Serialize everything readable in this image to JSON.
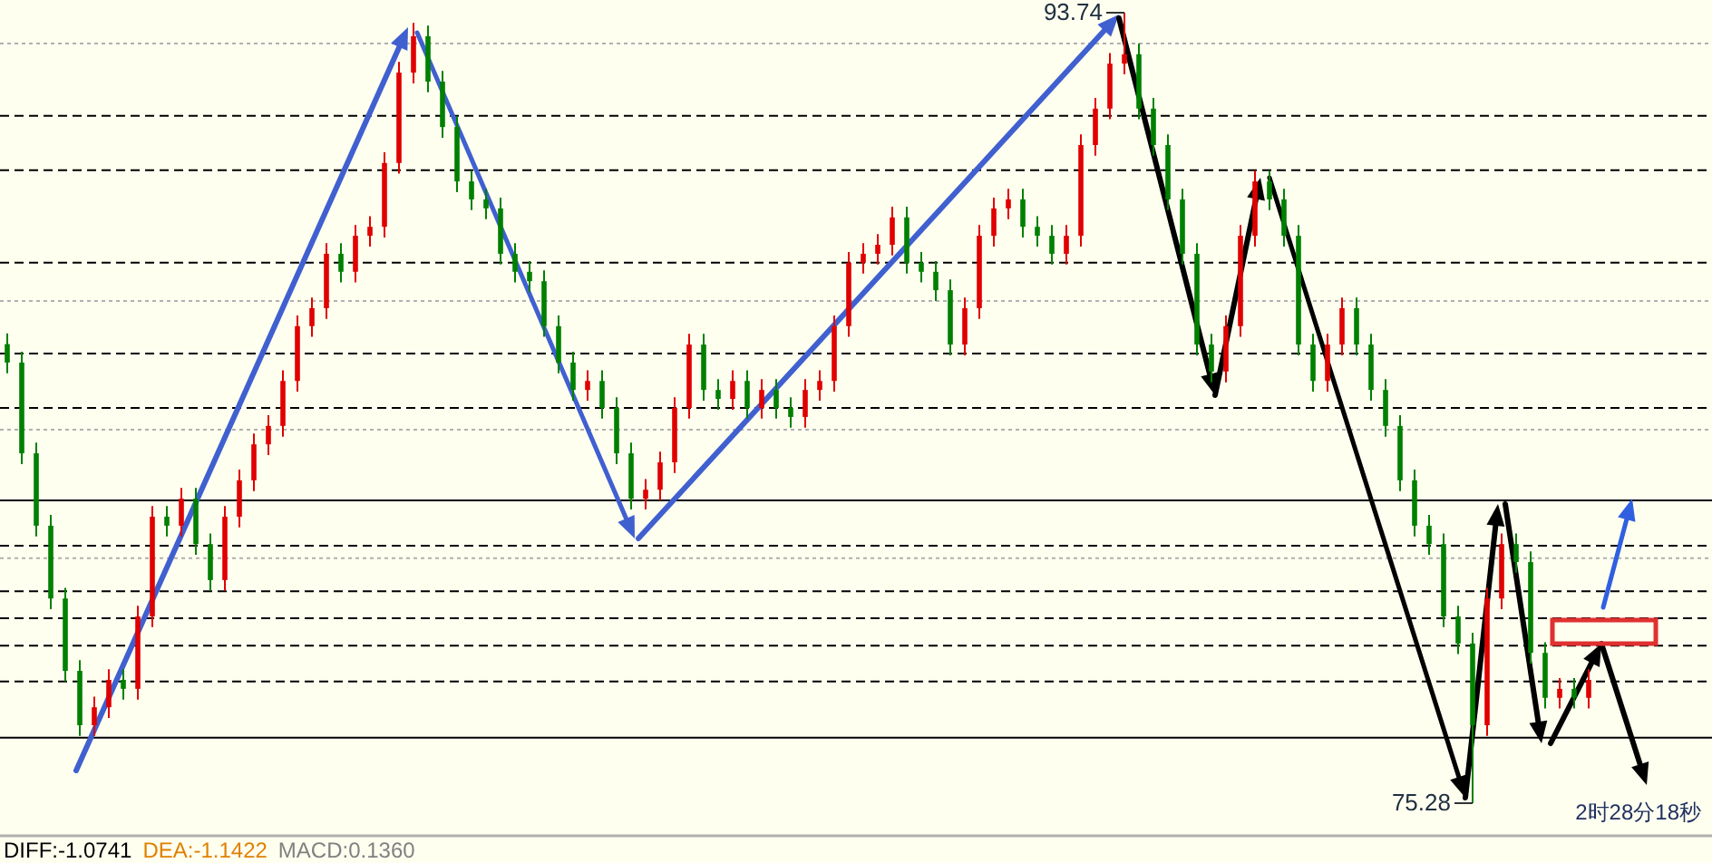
{
  "chart_data": {
    "type": "candlestick",
    "categories": [
      null,
      null,
      null,
      null,
      null,
      null,
      null,
      null,
      null,
      null,
      null,
      null,
      null,
      null,
      null,
      null,
      null,
      null,
      null,
      null,
      null,
      null,
      null,
      null,
      null,
      null,
      null,
      null,
      null,
      null,
      null,
      null,
      null,
      null,
      null,
      null,
      null,
      null,
      null,
      null,
      null,
      null,
      null,
      null,
      null,
      null,
      null,
      null,
      null,
      null,
      null,
      null,
      null,
      null,
      null,
      null,
      null,
      null,
      null,
      null,
      null,
      null,
      null,
      null,
      null,
      null,
      null,
      null,
      null,
      null,
      null,
      null,
      null,
      null,
      null,
      null,
      null,
      null,
      null,
      null,
      null,
      null,
      null,
      null,
      null,
      null,
      null,
      null,
      null,
      null,
      null,
      null,
      null,
      null,
      null,
      null,
      null,
      null,
      null,
      null,
      null,
      null,
      null,
      null,
      null,
      null,
      null,
      null,
      null,
      null,
      null,
      null,
      null,
      null,
      null,
      null,
      null,
      null
    ],
    "ohlc": [
      [
        86.0,
        86.25,
        85.32,
        85.57
      ],
      [
        85.57,
        85.82,
        83.2,
        83.45
      ],
      [
        83.45,
        83.7,
        81.51,
        81.76
      ],
      [
        81.76,
        82.01,
        79.81,
        80.06
      ],
      [
        80.06,
        80.31,
        78.12,
        78.37
      ],
      [
        78.37,
        78.62,
        76.85,
        77.1
      ],
      [
        77.1,
        77.77,
        76.85,
        77.52
      ],
      [
        77.52,
        78.41,
        77.27,
        78.16
      ],
      [
        78.16,
        78.41,
        77.7,
        77.95
      ],
      [
        77.95,
        79.89,
        77.7,
        79.64
      ],
      [
        79.64,
        82.22,
        79.39,
        81.97
      ],
      [
        81.97,
        82.22,
        81.51,
        81.76
      ],
      [
        81.76,
        82.64,
        81.51,
        82.39
      ],
      [
        82.39,
        82.64,
        81.08,
        81.33
      ],
      [
        81.33,
        81.58,
        80.24,
        80.49
      ],
      [
        80.49,
        82.22,
        80.24,
        81.97
      ],
      [
        81.97,
        83.07,
        81.72,
        82.82
      ],
      [
        82.82,
        83.91,
        82.57,
        83.66
      ],
      [
        83.66,
        84.34,
        83.41,
        84.09
      ],
      [
        84.09,
        85.39,
        83.84,
        85.14
      ],
      [
        85.14,
        86.67,
        84.89,
        86.42
      ],
      [
        86.42,
        87.09,
        86.17,
        86.84
      ],
      [
        86.84,
        88.36,
        86.59,
        88.11
      ],
      [
        88.11,
        88.36,
        87.44,
        87.69
      ],
      [
        87.69,
        88.78,
        87.44,
        88.53
      ],
      [
        88.53,
        88.99,
        88.28,
        88.74
      ],
      [
        88.74,
        90.48,
        88.49,
        90.23
      ],
      [
        90.23,
        92.59,
        89.98,
        92.34
      ],
      [
        92.34,
        93.5,
        92.09,
        93.19
      ],
      [
        93.19,
        93.44,
        91.88,
        92.13
      ],
      [
        92.13,
        92.38,
        90.82,
        91.07
      ],
      [
        91.07,
        91.32,
        89.55,
        89.8
      ],
      [
        89.8,
        90.05,
        89.13,
        89.38
      ],
      [
        89.38,
        89.63,
        88.92,
        89.17
      ],
      [
        89.17,
        89.42,
        87.86,
        88.11
      ],
      [
        88.11,
        88.36,
        87.44,
        87.69
      ],
      [
        87.69,
        87.94,
        87.22,
        87.47
      ],
      [
        87.47,
        87.72,
        86.17,
        86.42
      ],
      [
        86.42,
        86.67,
        85.32,
        85.57
      ],
      [
        85.57,
        85.82,
        84.68,
        84.93
      ],
      [
        84.93,
        85.39,
        84.68,
        85.14
      ],
      [
        85.14,
        85.39,
        84.26,
        84.51
      ],
      [
        84.51,
        84.76,
        83.2,
        83.45
      ],
      [
        83.45,
        83.7,
        82.14,
        82.39
      ],
      [
        82.39,
        82.85,
        82.14,
        82.6
      ],
      [
        82.6,
        83.49,
        82.35,
        83.24
      ],
      [
        83.24,
        84.76,
        82.99,
        84.51
      ],
      [
        84.51,
        86.24,
        84.26,
        85.99
      ],
      [
        85.99,
        86.24,
        84.68,
        84.93
      ],
      [
        84.93,
        85.18,
        84.47,
        84.72
      ],
      [
        84.72,
        85.39,
        84.47,
        85.14
      ],
      [
        85.14,
        85.39,
        84.26,
        84.51
      ],
      [
        84.51,
        85.18,
        84.26,
        84.93
      ],
      [
        84.93,
        85.18,
        84.26,
        84.51
      ],
      [
        84.51,
        84.76,
        84.05,
        84.3
      ],
      [
        84.3,
        85.18,
        84.05,
        84.93
      ],
      [
        84.93,
        85.39,
        84.68,
        85.14
      ],
      [
        85.14,
        86.67,
        84.89,
        86.42
      ],
      [
        86.42,
        88.15,
        86.17,
        87.9
      ],
      [
        87.9,
        88.36,
        87.65,
        88.11
      ],
      [
        88.11,
        88.57,
        87.86,
        88.32
      ],
      [
        88.32,
        89.21,
        88.07,
        88.96
      ],
      [
        88.96,
        89.21,
        87.65,
        87.9
      ],
      [
        87.9,
        88.15,
        87.44,
        87.69
      ],
      [
        87.69,
        87.94,
        87.01,
        87.26
      ],
      [
        87.26,
        87.51,
        85.74,
        85.99
      ],
      [
        85.99,
        87.09,
        85.74,
        86.84
      ],
      [
        86.84,
        88.78,
        86.59,
        88.53
      ],
      [
        88.53,
        89.42,
        88.28,
        89.17
      ],
      [
        89.17,
        89.63,
        88.92,
        89.38
      ],
      [
        89.38,
        89.63,
        88.49,
        88.74
      ],
      [
        88.74,
        88.99,
        88.28,
        88.53
      ],
      [
        88.53,
        88.78,
        87.86,
        88.11
      ],
      [
        88.11,
        88.78,
        87.86,
        88.53
      ],
      [
        88.53,
        90.9,
        88.28,
        90.65
      ],
      [
        90.65,
        91.75,
        90.4,
        91.5
      ],
      [
        91.5,
        92.8,
        91.25,
        92.55
      ],
      [
        92.55,
        93.74,
        92.3,
        92.77
      ],
      [
        92.77,
        93.02,
        91.25,
        91.5
      ],
      [
        91.5,
        91.75,
        90.4,
        90.65
      ],
      [
        90.65,
        90.9,
        89.13,
        89.38
      ],
      [
        89.38,
        89.63,
        87.86,
        88.11
      ],
      [
        88.11,
        88.36,
        85.74,
        85.99
      ],
      [
        85.99,
        86.24,
        85.11,
        85.36
      ],
      [
        85.36,
        86.67,
        85.11,
        86.42
      ],
      [
        86.42,
        88.78,
        86.17,
        88.53
      ],
      [
        88.53,
        90.05,
        88.28,
        89.8
      ],
      [
        89.8,
        90.05,
        89.13,
        89.38
      ],
      [
        89.38,
        89.63,
        88.28,
        88.53
      ],
      [
        88.53,
        88.78,
        85.74,
        85.99
      ],
      [
        85.99,
        86.24,
        84.89,
        85.14
      ],
      [
        85.14,
        86.24,
        84.89,
        85.99
      ],
      [
        85.99,
        87.09,
        85.74,
        86.84
      ],
      [
        86.84,
        87.09,
        85.74,
        85.99
      ],
      [
        85.99,
        86.24,
        84.68,
        84.93
      ],
      [
        84.93,
        85.18,
        83.84,
        84.09
      ],
      [
        84.09,
        84.34,
        82.57,
        82.82
      ],
      [
        82.82,
        83.07,
        81.51,
        81.76
      ],
      [
        81.76,
        82.01,
        81.08,
        81.33
      ],
      [
        81.33,
        81.58,
        79.39,
        79.64
      ],
      [
        79.64,
        79.89,
        78.76,
        79.01
      ],
      [
        79.01,
        79.26,
        75.28,
        77.1
      ],
      [
        77.1,
        80.31,
        76.85,
        80.06
      ],
      [
        80.06,
        81.58,
        79.81,
        81.33
      ],
      [
        81.33,
        81.58,
        80.66,
        80.91
      ],
      [
        80.91,
        81.16,
        78.54,
        78.79
      ],
      [
        78.79,
        79.04,
        77.49,
        77.74
      ],
      [
        77.74,
        78.2,
        77.49,
        77.95
      ],
      [
        77.95,
        78.2,
        77.49,
        77.74
      ],
      [
        77.74,
        78.41,
        77.49,
        78.16
      ],
      null,
      null,
      null,
      null,
      null,
      null,
      null,
      null
    ],
    "ref_lines": [
      {
        "axis": "y",
        "value": 93.02,
        "line_style": "dotted",
        "color": "#b0b0b0"
      },
      {
        "axis": "y",
        "value": 91.33,
        "line_style": "dashed",
        "color": "#000000"
      },
      {
        "axis": "y",
        "value": 90.06,
        "line_style": "dashed",
        "color": "#000000"
      },
      {
        "axis": "y",
        "value": 87.9,
        "line_style": "dashed",
        "color": "#000000"
      },
      {
        "axis": "y",
        "value": 87.01,
        "line_style": "dotted",
        "color": "#b0b0b0"
      },
      {
        "axis": "y",
        "value": 85.78,
        "line_style": "dashed",
        "color": "#000000"
      },
      {
        "axis": "y",
        "value": 84.51,
        "line_style": "dashed",
        "color": "#000000"
      },
      {
        "axis": "y",
        "value": 84.0,
        "line_style": "dotted",
        "color": "#b0b0b0"
      },
      {
        "axis": "y",
        "value": 82.35,
        "line_style": "solid",
        "color": "#000000"
      },
      {
        "axis": "y",
        "value": 81.29,
        "line_style": "dashed",
        "color": "#000000"
      },
      {
        "axis": "y",
        "value": 81.0,
        "line_style": "dotted",
        "color": "#b0b0b0"
      },
      {
        "axis": "y",
        "value": 80.23,
        "line_style": "dashed",
        "color": "#000000"
      },
      {
        "axis": "y",
        "value": 79.6,
        "line_style": "dashed",
        "color": "#000000"
      },
      {
        "axis": "y",
        "value": 78.96,
        "line_style": "dashed",
        "color": "#000000"
      },
      {
        "axis": "y",
        "value": 78.12,
        "line_style": "dashed",
        "color": "#000000"
      },
      {
        "axis": "y",
        "value": 76.81,
        "line_style": "solid",
        "color": "#000000"
      }
    ],
    "annotations": [
      "93.74",
      "75.28",
      "2时28分18秒",
      "DIFF:-1.0741",
      "DEA:-1.1422",
      "MACD:0.1360"
    ]
  }
}
